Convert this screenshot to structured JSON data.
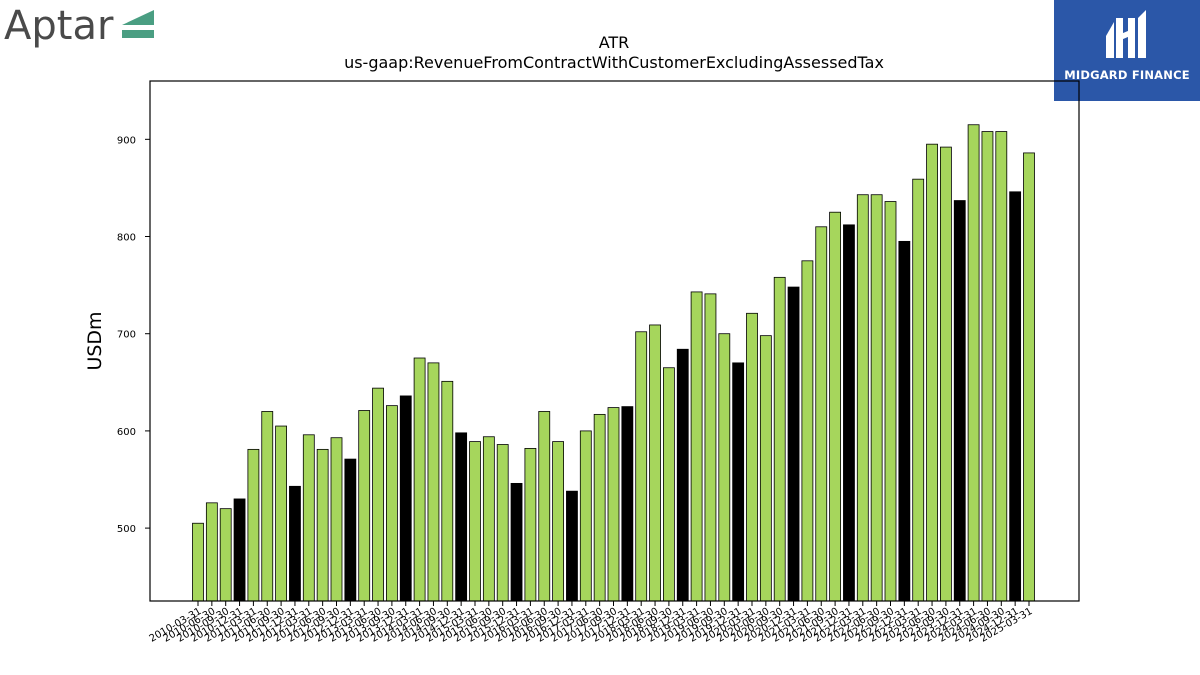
{
  "logos": {
    "left": {
      "text": "Aptar",
      "mark_color": "#4a9e82"
    },
    "right": {
      "text": "MIDGARD FINANCE",
      "background": "#2b57a8"
    }
  },
  "chart_data": {
    "type": "bar",
    "title": "ATR",
    "subtitle": "us-gaap:RevenueFromContractWithCustomerExcludingAssessedTax",
    "xlabel": "",
    "ylabel": "USDm",
    "ylim": [
      425,
      960
    ],
    "yticks": [
      500,
      600,
      700,
      800,
      900
    ],
    "grid": false,
    "colors": {
      "quarter": "#a6d65c",
      "annual": "#000000",
      "edge": "#000000"
    },
    "categories": [
      "2010-03-31",
      "2010-06-30",
      "2010-09-30",
      "2010-12-31",
      "2011-03-31",
      "2011-06-30",
      "2011-09-30",
      "2011-12-31",
      "2012-03-31",
      "2012-06-30",
      "2012-09-30",
      "2012-12-31",
      "2013-03-31",
      "2013-06-30",
      "2013-09-30",
      "2013-12-31",
      "2014-03-31",
      "2014-06-30",
      "2014-09-30",
      "2014-12-31",
      "2015-03-31",
      "2015-06-30",
      "2015-09-30",
      "2015-12-31",
      "2016-03-31",
      "2016-06-30",
      "2016-09-30",
      "2016-12-31",
      "2017-03-31",
      "2017-06-30",
      "2017-09-30",
      "2017-12-31",
      "2018-03-31",
      "2018-06-30",
      "2018-09-30",
      "2018-12-31",
      "2019-03-31",
      "2019-06-30",
      "2019-09-30",
      "2019-12-31",
      "2020-03-31",
      "2020-06-30",
      "2020-09-30",
      "2020-12-31",
      "2021-03-31",
      "2021-06-30",
      "2021-09-30",
      "2021-12-31",
      "2022-03-31",
      "2022-06-30",
      "2022-09-30",
      "2022-12-31",
      "2023-03-31",
      "2023-06-30",
      "2023-09-30",
      "2023-12-31",
      "2024-03-31",
      "2024-06-30",
      "2024-09-30",
      "2024-12-31",
      "2025-03-31"
    ],
    "values": [
      505,
      526,
      520,
      530,
      581,
      620,
      605,
      543,
      596,
      581,
      593,
      571,
      621,
      644,
      626,
      636,
      675,
      670,
      651,
      598,
      589,
      594,
      586,
      546,
      582,
      620,
      589,
      538,
      600,
      617,
      624,
      625,
      702,
      709,
      665,
      684,
      743,
      741,
      700,
      670,
      721,
      698,
      758,
      748,
      775,
      810,
      825,
      812,
      843,
      843,
      836,
      795,
      859,
      895,
      892,
      837,
      915,
      908,
      908,
      846,
      886
    ],
    "annual_flags": [
      0,
      0,
      0,
      1,
      0,
      0,
      0,
      1,
      0,
      0,
      0,
      1,
      0,
      0,
      0,
      1,
      0,
      0,
      0,
      1,
      0,
      0,
      0,
      1,
      0,
      0,
      0,
      1,
      0,
      0,
      0,
      1,
      0,
      0,
      0,
      1,
      0,
      0,
      0,
      1,
      0,
      0,
      0,
      1,
      0,
      0,
      0,
      1,
      0,
      0,
      0,
      1,
      0,
      0,
      0,
      1,
      0,
      0,
      0,
      1,
      0
    ]
  }
}
